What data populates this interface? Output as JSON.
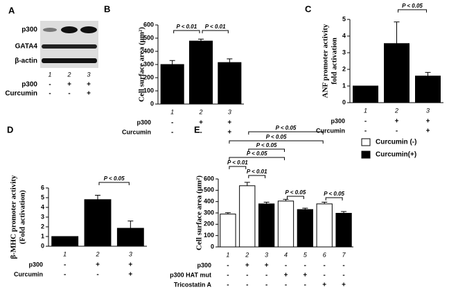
{
  "blot": {
    "panel": "A",
    "bands": [
      "p300",
      "GATA4",
      "β-actin"
    ],
    "lanes": [
      "1",
      "2",
      "3"
    ],
    "conditions": [
      {
        "label": "p300",
        "values": [
          "-",
          "+",
          "+"
        ]
      },
      {
        "label": "Curcumin",
        "values": [
          "-",
          "-",
          "+"
        ]
      }
    ]
  },
  "chart_data": [
    {
      "type": "bar",
      "panel": "B",
      "ylabel": [
        "Cell surface area (μm²)"
      ],
      "categories": [
        "1",
        "2",
        "3"
      ],
      "series": [
        {
          "color": "#000000",
          "values": [
            300,
            478,
            315
          ],
          "errors": [
            30,
            15,
            28
          ]
        }
      ],
      "ylim": [
        0,
        600
      ],
      "yticks": [
        0,
        100,
        200,
        300,
        400,
        500,
        600
      ],
      "annotations": [
        {
          "between": [
            "1",
            "2"
          ],
          "text": "P < 0.01"
        },
        {
          "between": [
            "2",
            "3"
          ],
          "text": "P < 0.01"
        }
      ],
      "conditions": [
        {
          "label": "p300",
          "values": [
            "-",
            "+",
            "+"
          ]
        },
        {
          "label": "Curcumin",
          "values": [
            "-",
            "-",
            "+"
          ]
        }
      ]
    },
    {
      "type": "bar",
      "panel": "C",
      "ylabel": [
        "ANF promoter activity",
        "fold activation"
      ],
      "categories": [
        "1",
        "2",
        "3"
      ],
      "series": [
        {
          "color": "#000000",
          "values": [
            1,
            3.55,
            1.6
          ],
          "errors": [
            0,
            1.3,
            0.22
          ]
        }
      ],
      "ylim": [
        0,
        5
      ],
      "yticks": [
        0,
        1,
        2,
        3,
        4,
        5
      ],
      "annotations": [
        {
          "between": [
            "2",
            "3"
          ],
          "text": "P < 0.05"
        }
      ],
      "conditions": [
        {
          "label": "p300",
          "values": [
            "-",
            "+",
            "+"
          ]
        },
        {
          "label": "Curcumin",
          "values": [
            "-",
            "-",
            "+"
          ]
        }
      ]
    },
    {
      "type": "bar",
      "panel": "D",
      "ylabel": [
        "β-MHC promoter activity",
        "(Fold activation)"
      ],
      "categories": [
        "1",
        "2",
        "3"
      ],
      "series": [
        {
          "color": "#000000",
          "values": [
            1,
            4.8,
            1.85
          ],
          "errors": [
            0,
            0.45,
            0.75
          ]
        }
      ],
      "ylim": [
        0,
        6
      ],
      "yticks": [
        0,
        1,
        2,
        3,
        4,
        5,
        6
      ],
      "annotations": [
        {
          "between": [
            "2",
            "3"
          ],
          "text": "P < 0.05"
        }
      ],
      "conditions": [
        {
          "label": "p300",
          "values": [
            "-",
            "+",
            "+"
          ]
        },
        {
          "label": "Curcumin",
          "values": [
            "-",
            "-",
            "+"
          ]
        }
      ]
    },
    {
      "type": "bar",
      "panel": "E",
      "ylabel": [
        "Cell surface area (μm²)"
      ],
      "categories": [
        "1",
        "2",
        "3",
        "4",
        "5",
        "6",
        "7"
      ],
      "series": [
        {
          "name": "Curcumin (-)",
          "color": "#ffffff",
          "values": [
            290,
            540,
            null,
            405,
            null,
            380,
            null
          ],
          "errors": [
            12,
            30,
            null,
            15,
            null,
            15,
            null
          ]
        },
        {
          "name": "Curcumin(+)",
          "color": "#000000",
          "values": [
            null,
            null,
            380,
            null,
            330,
            null,
            297
          ],
          "errors": [
            null,
            null,
            15,
            null,
            12,
            null,
            15
          ]
        }
      ],
      "ylim": [
        0,
        600
      ],
      "yticks": [
        0,
        100,
        200,
        300,
        400,
        500,
        600
      ],
      "annotations": [
        {
          "between": [
            "2",
            "6"
          ],
          "text": "P < 0.05"
        },
        {
          "between": [
            "1",
            "6"
          ],
          "text": "P < 0.05"
        },
        {
          "between": [
            "2",
            "4"
          ],
          "text": "P < 0.05"
        },
        {
          "between": [
            "1",
            "4"
          ],
          "text": "P < 0.05"
        },
        {
          "between": [
            "1",
            "2"
          ],
          "text": "P < 0.01"
        },
        {
          "between": [
            "2",
            "3"
          ],
          "text": "P < 0.01"
        },
        {
          "between": [
            "4",
            "5"
          ],
          "text": "P < 0.05"
        },
        {
          "between": [
            "6",
            "7"
          ],
          "text": "P < 0.05"
        }
      ],
      "conditions": [
        {
          "label": "p300",
          "values": [
            "-",
            "+",
            "+",
            "-",
            "-",
            "-",
            "-"
          ]
        },
        {
          "label": "p300 HAT mut",
          "values": [
            "-",
            "-",
            "-",
            "+",
            "+",
            "-",
            "-"
          ]
        },
        {
          "label": "Tricostatin A",
          "values": [
            "-",
            "-",
            "-",
            "-",
            "-",
            "+",
            "+"
          ]
        }
      ]
    }
  ]
}
